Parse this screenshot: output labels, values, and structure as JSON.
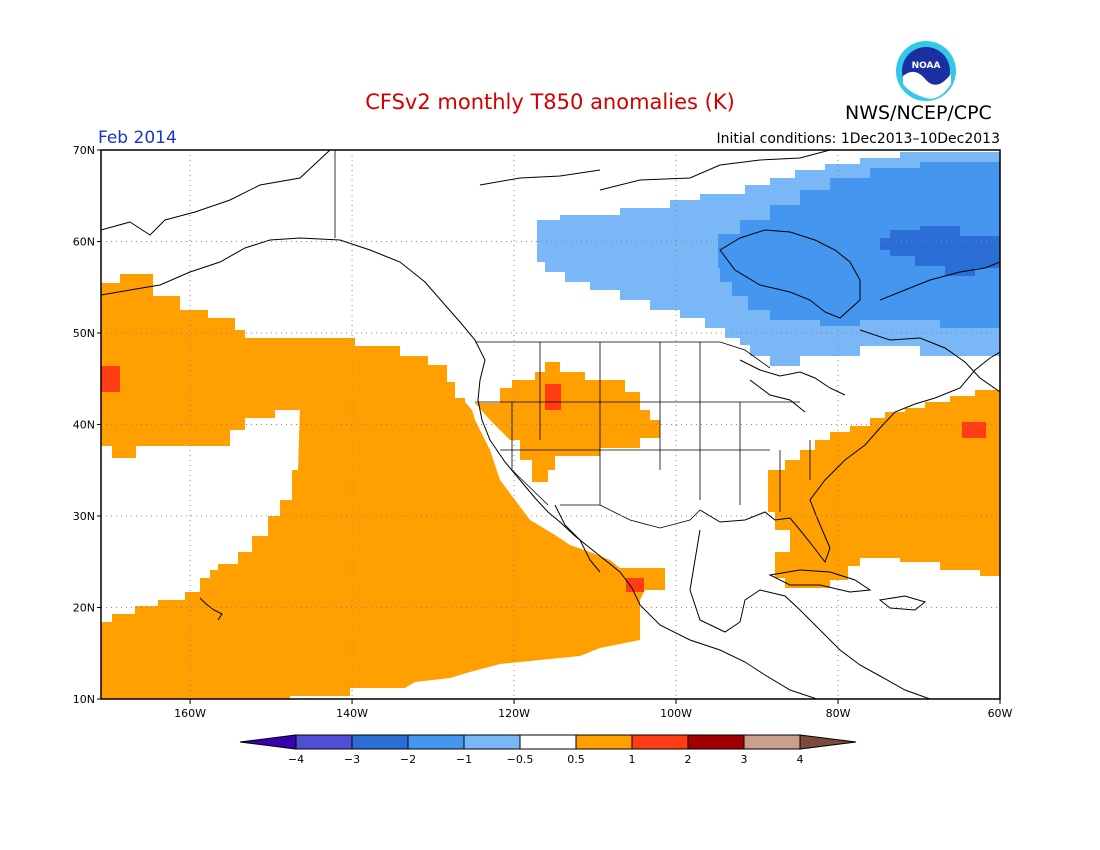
{
  "header": {
    "title": "CFSv2 monthly T850 anomalies (K)",
    "org": "NWS/NCEP/CPC",
    "month": "Feb 2014",
    "initial_conditions": "Initial conditions: 1Dec2013–10Dec2013",
    "logo_text": "NOAA"
  },
  "map": {
    "lat_labels": [
      "70N",
      "60N",
      "50N",
      "40N",
      "30N",
      "20N",
      "10N"
    ],
    "lon_labels": [
      "160W",
      "140W",
      "120W",
      "100W",
      "80W",
      "60W"
    ],
    "lat_range": [
      10,
      70
    ],
    "lon_range": [
      -171,
      -60
    ],
    "gridlines": "dotted"
  },
  "colorbar": {
    "labels": [
      "−4",
      "−3",
      "−2",
      "−1",
      "−0.5",
      "0.5",
      "1",
      "2",
      "3",
      "4"
    ],
    "colors": [
      "#3a00b0",
      "#4f4fd6",
      "#2b6fd6",
      "#4596ef",
      "#7ab7f7",
      "#ffffff",
      "#ffa000",
      "#ff3c14",
      "#a00000",
      "#c8a08c",
      "#7a4a3a"
    ]
  },
  "anomaly_regions": [
    {
      "name": "North Pacific warm",
      "category": "0.5 to 1",
      "color": "#ffa000"
    },
    {
      "name": "Eastern Pacific warm",
      "category": "0.5 to 1",
      "color": "#ffa000"
    },
    {
      "name": "Western interior warm",
      "category": "0.5 to 1",
      "color": "#ffa000"
    },
    {
      "name": "Southeast US / Atlantic warm",
      "category": "0.5 to 1",
      "color": "#ffa000"
    },
    {
      "name": "Canada cold",
      "category": "-0.5 to -1",
      "color": "#7ab7f7"
    },
    {
      "name": "Hudson Bay cold",
      "category": "-1 to -2",
      "color": "#4596ef"
    },
    {
      "name": "Labrador cold core",
      "category": "-2 to -3",
      "color": "#2b6fd6"
    },
    {
      "name": "Warm spots",
      "category": "1 to 2",
      "color": "#ff3c14"
    }
  ]
}
